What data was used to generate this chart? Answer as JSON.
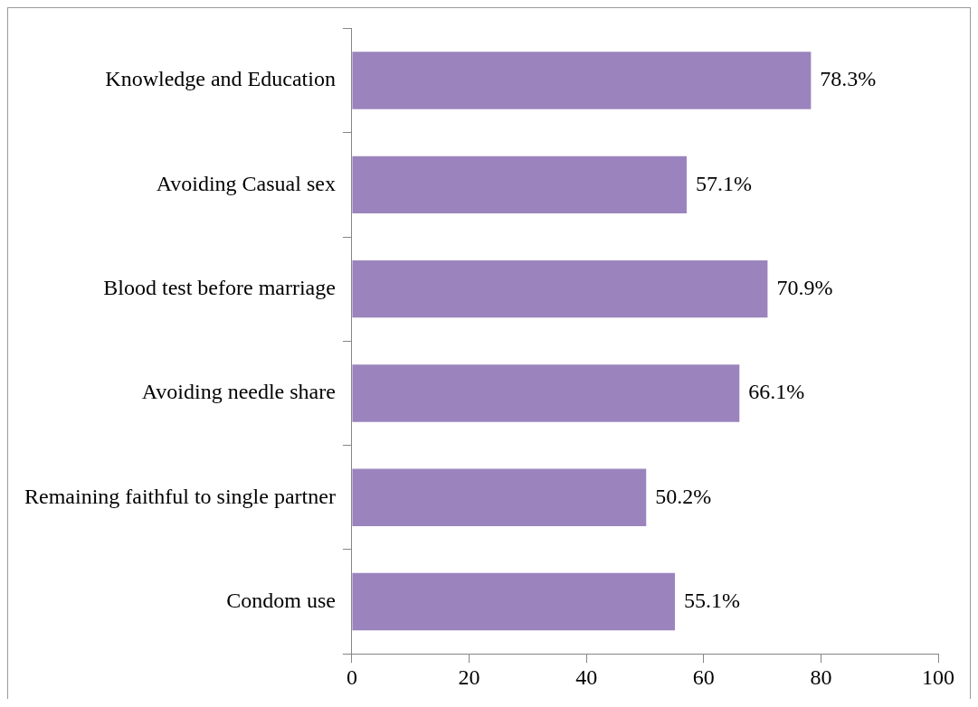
{
  "chart_data": {
    "type": "bar",
    "orientation": "horizontal",
    "categories": [
      "Knowledge and Education",
      "Avoiding Casual sex",
      "Blood test before marriage",
      "Avoiding needle share",
      "Remaining faithful to single partner",
      "Condom use"
    ],
    "values": [
      78.3,
      57.1,
      70.9,
      66.1,
      50.2,
      55.1
    ],
    "value_labels": [
      "78.3%",
      "57.1%",
      "70.9%",
      "66.1%",
      "50.2%",
      "55.1%"
    ],
    "color": "#9b84bd",
    "xlim": [
      0,
      100
    ],
    "xticks": [
      0,
      20,
      40,
      60,
      80,
      100
    ]
  }
}
